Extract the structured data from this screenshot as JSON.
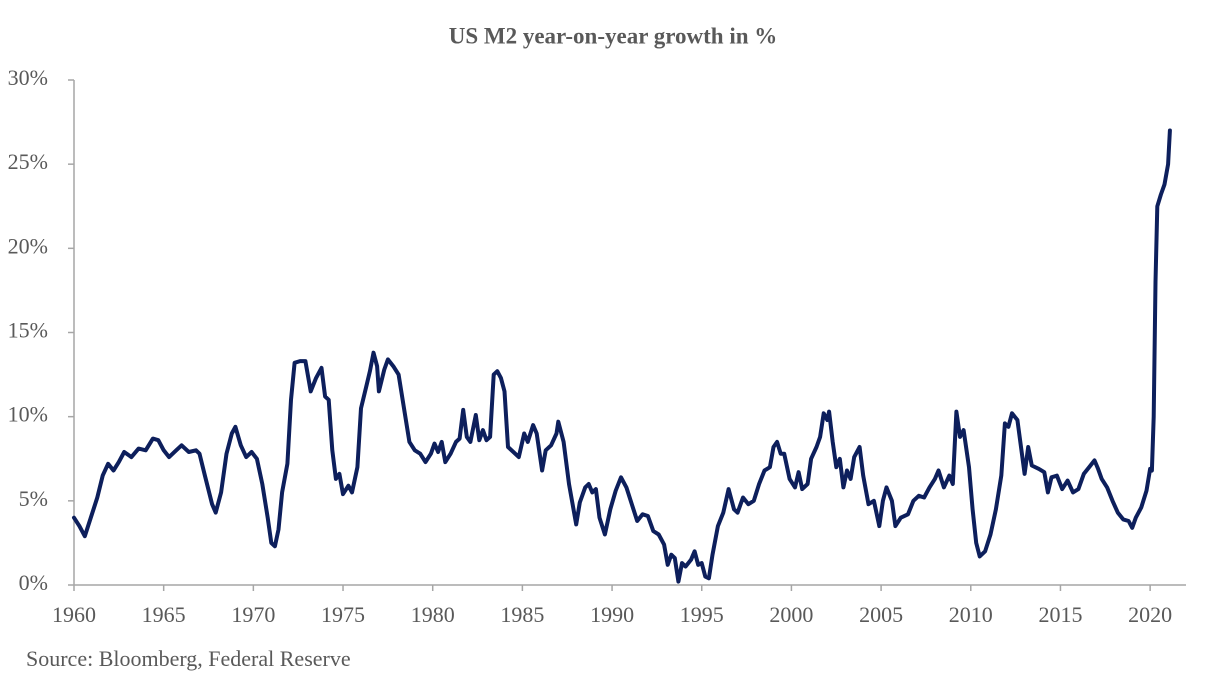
{
  "chart_data": {
    "type": "line",
    "title": "US M2 year-on-year growth in %",
    "source": "Source: Bloomberg, Federal Reserve",
    "xlim": [
      1960,
      2022
    ],
    "xticks": [
      1960,
      1965,
      1970,
      1975,
      1980,
      1985,
      1990,
      1995,
      2000,
      2005,
      2010,
      2015,
      2020
    ],
    "ylim": [
      0,
      30
    ],
    "yticks": [
      {
        "value": 0,
        "label": "0%"
      },
      {
        "value": 5,
        "label": "5%"
      },
      {
        "value": 10,
        "label": "10%"
      },
      {
        "value": 15,
        "label": "15%"
      },
      {
        "value": 20,
        "label": "20%"
      },
      {
        "value": 25,
        "label": "25%"
      },
      {
        "value": 30,
        "label": "30%"
      }
    ],
    "grid": false,
    "series": [
      {
        "color": "#0d1f5c",
        "x": [
          1960.0,
          1960.3,
          1960.6,
          1961.0,
          1961.3,
          1961.6,
          1961.9,
          1962.2,
          1962.5,
          1962.8,
          1963.2,
          1963.6,
          1964.0,
          1964.4,
          1964.7,
          1965.0,
          1965.3,
          1965.7,
          1966.0,
          1966.4,
          1966.8,
          1967.0,
          1967.3,
          1967.7,
          1967.9,
          1968.2,
          1968.5,
          1968.8,
          1969.0,
          1969.3,
          1969.6,
          1969.9,
          1970.2,
          1970.5,
          1970.8,
          1971.0,
          1971.2,
          1971.4,
          1971.6,
          1971.9,
          1972.1,
          1972.3,
          1972.6,
          1972.9,
          1973.2,
          1973.5,
          1973.8,
          1974.0,
          1974.2,
          1974.4,
          1974.6,
          1974.8,
          1975.0,
          1975.3,
          1975.5,
          1975.8,
          1976.0,
          1976.3,
          1976.5,
          1976.7,
          1976.9,
          1977.0,
          1977.3,
          1977.5,
          1977.8,
          1978.1,
          1978.4,
          1978.7,
          1979.0,
          1979.3,
          1979.6,
          1979.9,
          1980.1,
          1980.3,
          1980.5,
          1980.7,
          1981.0,
          1981.3,
          1981.5,
          1981.7,
          1981.9,
          1982.1,
          1982.4,
          1982.6,
          1982.8,
          1983.0,
          1983.2,
          1983.4,
          1983.6,
          1983.8,
          1984.0,
          1984.2,
          1984.5,
          1984.8,
          1985.1,
          1985.3,
          1985.6,
          1985.8,
          1986.1,
          1986.3,
          1986.6,
          1986.9,
          1987.0,
          1987.3,
          1987.6,
          1987.8,
          1988.0,
          1988.2,
          1988.5,
          1988.7,
          1988.9,
          1989.1,
          1989.3,
          1989.6,
          1989.9,
          1990.2,
          1990.5,
          1990.8,
          1991.1,
          1991.4,
          1991.7,
          1992.0,
          1992.3,
          1992.6,
          1992.9,
          1993.1,
          1993.3,
          1993.5,
          1993.7,
          1993.9,
          1994.1,
          1994.4,
          1994.6,
          1994.8,
          1995.0,
          1995.2,
          1995.4,
          1995.6,
          1995.9,
          1996.2,
          1996.5,
          1996.8,
          1997.0,
          1997.3,
          1997.6,
          1997.9,
          1998.2,
          1998.5,
          1998.8,
          1999.0,
          1999.2,
          1999.4,
          1999.6,
          1999.9,
          2000.2,
          2000.4,
          2000.6,
          2000.9,
          2001.1,
          2001.4,
          2001.6,
          2001.8,
          2002.0,
          2002.1,
          2002.3,
          2002.5,
          2002.7,
          2002.9,
          2003.1,
          2003.3,
          2003.5,
          2003.8,
          2004.0,
          2004.3,
          2004.6,
          2004.9,
          2005.1,
          2005.3,
          2005.6,
          2005.8,
          2006.1,
          2006.5,
          2006.8,
          2007.1,
          2007.4,
          2007.7,
          2008.0,
          2008.2,
          2008.5,
          2008.8,
          2009.0,
          2009.2,
          2009.4,
          2009.6,
          2009.9,
          2010.1,
          2010.3,
          2010.5,
          2010.8,
          2011.1,
          2011.4,
          2011.7,
          2011.9,
          2012.1,
          2012.3,
          2012.6,
          2012.8,
          2013.0,
          2013.2,
          2013.4,
          2013.8,
          2014.1,
          2014.3,
          2014.5,
          2014.8,
          2015.1,
          2015.4,
          2015.7,
          2016.0,
          2016.3,
          2016.6,
          2016.9,
          2017.1,
          2017.3,
          2017.6,
          2017.9,
          2018.2,
          2018.5,
          2018.8,
          2019.0,
          2019.2,
          2019.5,
          2019.8,
          2020.0,
          2020.1,
          2020.2,
          2020.3,
          2020.4,
          2020.6,
          2020.8,
          2021.0,
          2021.1
        ],
        "values": [
          4.0,
          3.5,
          2.9,
          4.2,
          5.2,
          6.5,
          7.2,
          6.8,
          7.3,
          7.9,
          7.6,
          8.1,
          8.0,
          8.7,
          8.6,
          8.0,
          7.6,
          8.0,
          8.3,
          7.9,
          8.0,
          7.8,
          6.5,
          4.8,
          4.3,
          5.5,
          7.8,
          9.0,
          9.4,
          8.3,
          7.6,
          7.9,
          7.5,
          6.0,
          4.0,
          2.5,
          2.3,
          3.3,
          5.5,
          7.2,
          11.0,
          13.2,
          13.3,
          13.3,
          11.5,
          12.3,
          12.9,
          11.2,
          11.0,
          8.0,
          6.3,
          6.6,
          5.4,
          5.9,
          5.5,
          7.0,
          10.5,
          11.8,
          12.7,
          13.8,
          13.0,
          11.5,
          12.8,
          13.4,
          13.0,
          12.5,
          10.5,
          8.5,
          8.0,
          7.8,
          7.3,
          7.8,
          8.4,
          7.9,
          8.5,
          7.3,
          7.8,
          8.5,
          8.7,
          10.4,
          8.8,
          8.5,
          10.1,
          8.6,
          9.2,
          8.6,
          8.8,
          12.5,
          12.7,
          12.3,
          11.5,
          8.2,
          7.9,
          7.6,
          9.0,
          8.5,
          9.5,
          9.0,
          6.8,
          8.0,
          8.3,
          9.0,
          9.7,
          8.5,
          6.0,
          4.8,
          3.6,
          4.9,
          5.8,
          6.0,
          5.5,
          5.7,
          4.0,
          3.0,
          4.5,
          5.6,
          6.4,
          5.8,
          4.8,
          3.8,
          4.2,
          4.1,
          3.2,
          3.0,
          2.4,
          1.2,
          1.8,
          1.6,
          0.2,
          1.3,
          1.1,
          1.5,
          2.0,
          1.2,
          1.3,
          0.5,
          0.4,
          1.8,
          3.5,
          4.3,
          5.7,
          4.5,
          4.3,
          5.2,
          4.8,
          5.0,
          6.0,
          6.8,
          7.0,
          8.2,
          8.5,
          7.8,
          7.8,
          6.3,
          5.8,
          6.7,
          5.7,
          6.0,
          7.5,
          8.2,
          8.8,
          10.2,
          9.8,
          10.3,
          8.5,
          7.0,
          7.5,
          5.8,
          6.8,
          6.3,
          7.6,
          8.2,
          6.5,
          4.8,
          5.0,
          3.5,
          5.0,
          5.8,
          5.0,
          3.5,
          4.0,
          4.2,
          5.0,
          5.3,
          5.2,
          5.8,
          6.3,
          6.8,
          5.8,
          6.5,
          6.0,
          10.3,
          8.8,
          9.2,
          7.0,
          4.5,
          2.5,
          1.7,
          2.0,
          3.0,
          4.5,
          6.5,
          9.6,
          9.4,
          10.2,
          9.8,
          8.2,
          6.6,
          8.2,
          7.1,
          6.9,
          6.7,
          5.5,
          6.4,
          6.5,
          5.7,
          6.2,
          5.5,
          5.7,
          6.6,
          7.0,
          7.4,
          6.9,
          6.3,
          5.8,
          5.0,
          4.3,
          3.9,
          3.8,
          3.4,
          4.0,
          4.6,
          5.6,
          6.9,
          6.8,
          10,
          18,
          22.5,
          23.2,
          23.8,
          25,
          27.0
        ]
      }
    ]
  }
}
